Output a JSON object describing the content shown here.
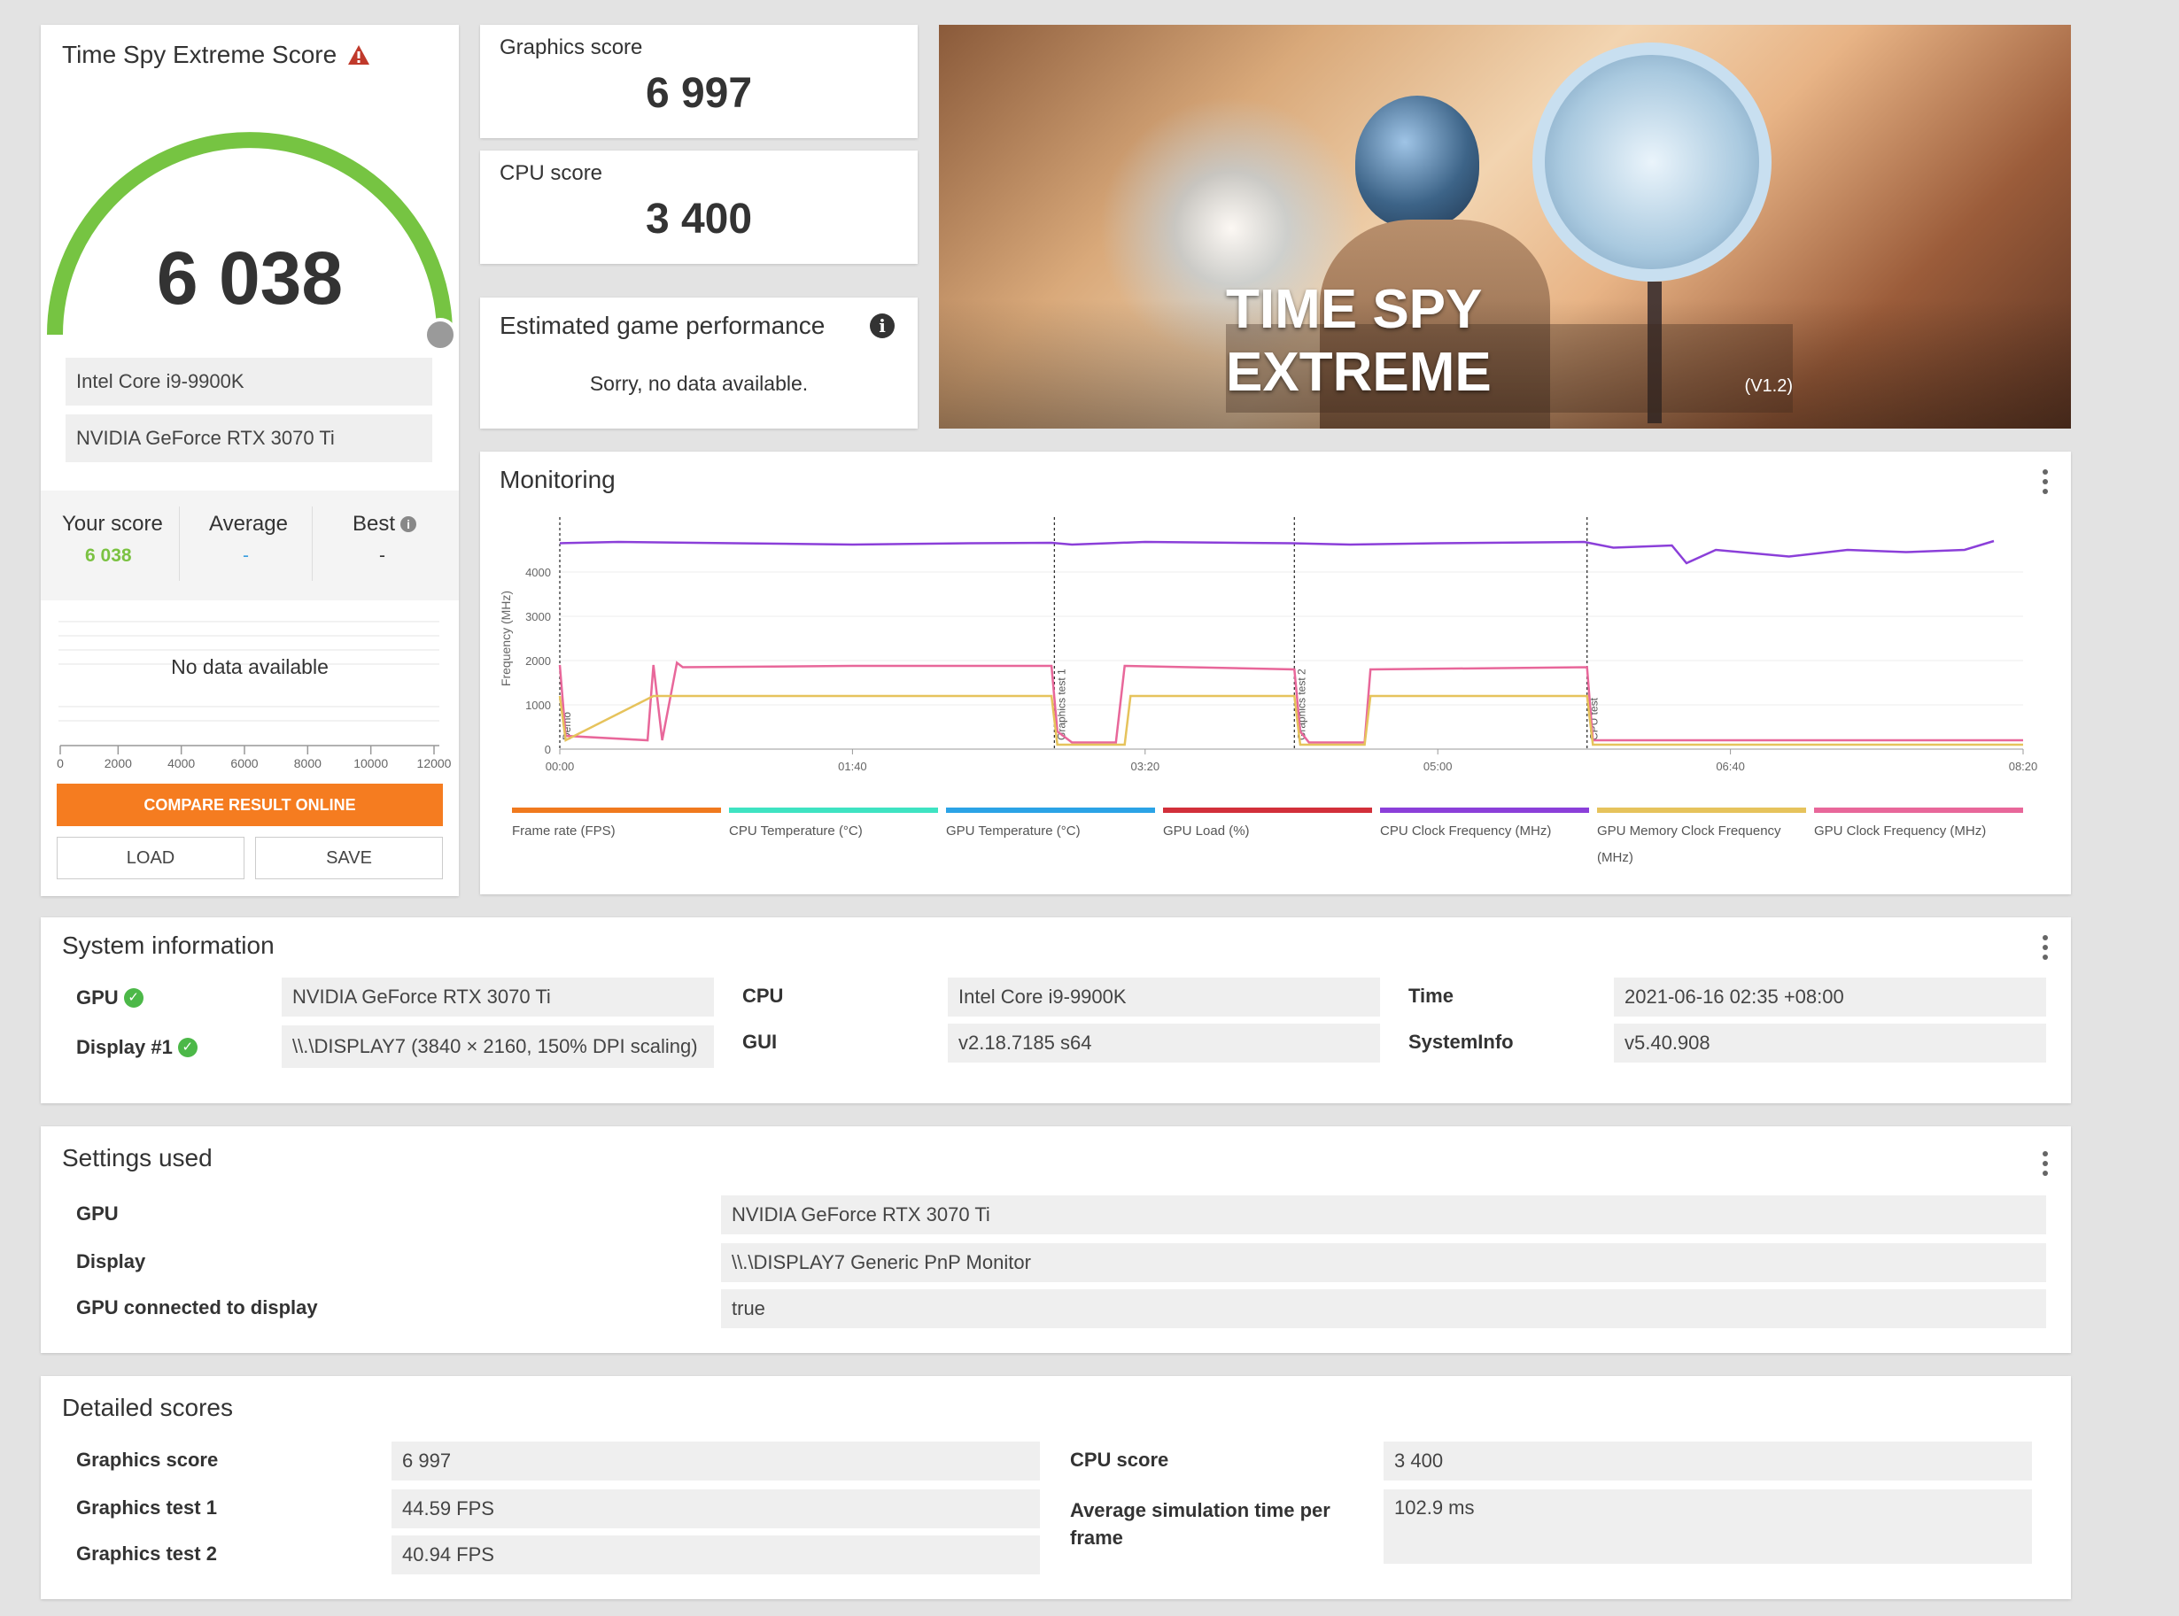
{
  "score_panel": {
    "title": "Time Spy Extreme Score",
    "score": "6 038",
    "gauge_fraction": 1.0,
    "cpu_name": "Intel Core i9-9900K",
    "gpu_name": "NVIDIA GeForce RTX 3070 Ti",
    "your_score_label": "Your score",
    "your_score_value": "6 038",
    "average_label": "Average",
    "average_value": "-",
    "best_label": "Best",
    "best_value": "-",
    "no_data": "No data available",
    "axis_ticks": [
      "0",
      "2000",
      "4000",
      "6000",
      "8000",
      "10000",
      "12000"
    ],
    "compare_button": "COMPARE RESULT ONLINE",
    "load_button": "LOAD",
    "save_button": "SAVE"
  },
  "graphics_score": {
    "label": "Graphics score",
    "value": "6 997"
  },
  "cpu_score": {
    "label": "CPU score",
    "value": "3 400"
  },
  "estimated": {
    "title": "Estimated game performance",
    "message": "Sorry, no data available."
  },
  "banner": {
    "title": "TIME SPY EXTREME",
    "version": "(V1.2)"
  },
  "monitoring": {
    "title": "Monitoring",
    "chart_data": {
      "type": "line",
      "ylabel": "Frequency (MHz)",
      "ylim": [
        0,
        5000
      ],
      "y_ticks": [
        "0",
        "1000",
        "2000",
        "3000",
        "4000"
      ],
      "x_ticks": [
        "00:00",
        "01:40",
        "03:20",
        "05:00",
        "06:40",
        "08:20"
      ],
      "xlim_seconds": [
        0,
        500
      ],
      "markers": [
        {
          "t": 0,
          "label": "Demo"
        },
        {
          "t": 169,
          "label": "Graphics test 1"
        },
        {
          "t": 251,
          "label": "Graphics test 2"
        },
        {
          "t": 351,
          "label": "CPU test"
        }
      ],
      "series": [
        {
          "name": "CPU Clock Frequency (MHz)",
          "color": "#8b3fd9",
          "points": [
            [
              0,
              4650
            ],
            [
              20,
              4680
            ],
            [
              60,
              4650
            ],
            [
              100,
              4620
            ],
            [
              140,
              4650
            ],
            [
              168,
              4660
            ],
            [
              175,
              4620
            ],
            [
              200,
              4680
            ],
            [
              250,
              4650
            ],
            [
              270,
              4620
            ],
            [
              300,
              4650
            ],
            [
              350,
              4680
            ],
            [
              360,
              4550
            ],
            [
              380,
              4600
            ],
            [
              385,
              4200
            ],
            [
              395,
              4500
            ],
            [
              420,
              4350
            ],
            [
              440,
              4500
            ],
            [
              460,
              4450
            ],
            [
              480,
              4500
            ],
            [
              490,
              4700
            ],
            [
              490,
              4700
            ]
          ]
        },
        {
          "name": "GPU Clock Frequency (MHz)",
          "color": "#e8679a",
          "points": [
            [
              0,
              1900
            ],
            [
              2,
              300
            ],
            [
              30,
              200
            ],
            [
              32,
              1900
            ],
            [
              35,
              200
            ],
            [
              40,
              1950
            ],
            [
              42,
              1850
            ],
            [
              100,
              1880
            ],
            [
              168,
              1880
            ],
            [
              170,
              400
            ],
            [
              175,
              150
            ],
            [
              190,
              150
            ],
            [
              193,
              1880
            ],
            [
              251,
              1800
            ],
            [
              253,
              400
            ],
            [
              256,
              150
            ],
            [
              275,
              150
            ],
            [
              277,
              1800
            ],
            [
              351,
              1850
            ],
            [
              353,
              200
            ],
            [
              500,
              200
            ]
          ]
        },
        {
          "name": "GPU Memory Clock Frequency (MHz)",
          "color": "#e6c35c",
          "points": [
            [
              0,
              1200
            ],
            [
              2,
              200
            ],
            [
              32,
              1200
            ],
            [
              40,
              1200
            ],
            [
              168,
              1200
            ],
            [
              170,
              100
            ],
            [
              193,
              100
            ],
            [
              195,
              1200
            ],
            [
              251,
              1200
            ],
            [
              253,
              100
            ],
            [
              275,
              100
            ],
            [
              277,
              1200
            ],
            [
              351,
              1200
            ],
            [
              353,
              100
            ],
            [
              500,
              100
            ]
          ]
        }
      ]
    },
    "legend": [
      {
        "name": "Frame rate (FPS)",
        "color": "#f07a1e"
      },
      {
        "name": "CPU Temperature (°C)",
        "color": "#3ee3c2"
      },
      {
        "name": "GPU Temperature (°C)",
        "color": "#2ba3e6"
      },
      {
        "name": "GPU Load (%)",
        "color": "#d22f3a"
      },
      {
        "name": "CPU Clock Frequency (MHz)",
        "color": "#8b3fd9"
      },
      {
        "name": "GPU Memory Clock Frequency (MHz)",
        "color": "#e6c35c"
      },
      {
        "name": "GPU Clock Frequency (MHz)",
        "color": "#e8679a"
      }
    ]
  },
  "system_info": {
    "title": "System information",
    "gpu_label": "GPU",
    "gpu_value": "NVIDIA GeForce RTX 3070 Ti",
    "display_label": "Display #1",
    "display_value": "\\\\.\\DISPLAY7 (3840 × 2160, 150% DPI scaling)",
    "cpu_label": "CPU",
    "cpu_value": "Intel Core i9-9900K",
    "gui_label": "GUI",
    "gui_value": "v2.18.7185 s64",
    "time_label": "Time",
    "time_value": "2021-06-16 02:35 +08:00",
    "sysinfo_label": "SystemInfo",
    "sysinfo_value": "v5.40.908"
  },
  "settings": {
    "title": "Settings used",
    "gpu_label": "GPU",
    "gpu_value": "NVIDIA GeForce RTX 3070 Ti",
    "display_label": "Display",
    "display_value": "\\\\.\\DISPLAY7 Generic PnP Monitor",
    "connected_label": "GPU connected to display",
    "connected_value": "true"
  },
  "detailed": {
    "title": "Detailed scores",
    "graphics_score_label": "Graphics score",
    "graphics_score_value": "6 997",
    "gt1_label": "Graphics test 1",
    "gt1_value": "44.59 FPS",
    "gt2_label": "Graphics test 2",
    "gt2_value": "40.94 FPS",
    "cpu_score_label": "CPU score",
    "cpu_score_value": "3 400",
    "avg_sim_label": "Average simulation time per frame",
    "avg_sim_value": "102.9 ms"
  }
}
